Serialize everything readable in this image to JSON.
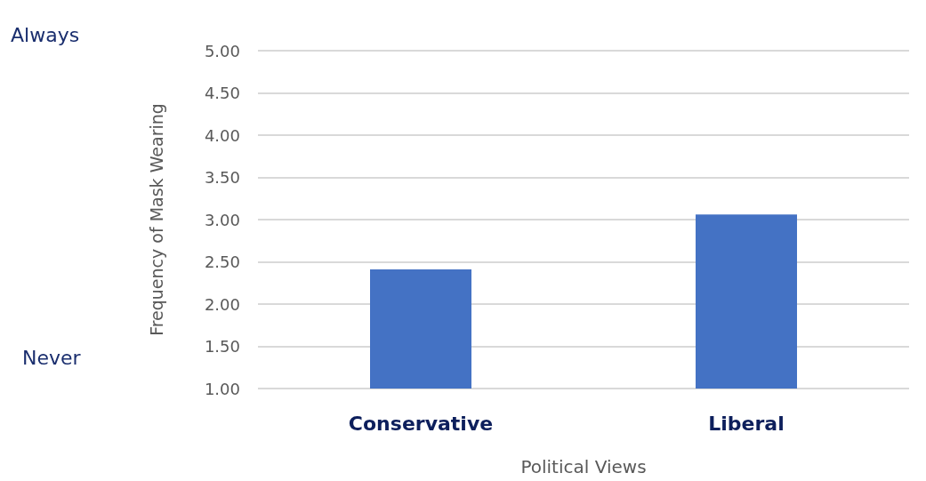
{
  "chart_data": {
    "type": "bar",
    "xlabel": "Political Views",
    "ylabel": "Frequency of Mask Wearing",
    "categories": [
      "Conservative",
      "Liberal"
    ],
    "values": [
      2.41,
      3.06
    ],
    "color": "#4472c4",
    "ylim": [
      1,
      5
    ],
    "yticks": [
      {
        "value": 1,
        "label": "1.00"
      },
      {
        "value": 1.5,
        "label": "1.50"
      },
      {
        "value": 2,
        "label": "2.00"
      },
      {
        "value": 2.5,
        "label": "2.50"
      },
      {
        "value": 3,
        "label": "3.00"
      },
      {
        "value": 3.5,
        "label": "3.50"
      },
      {
        "value": 4,
        "label": "4.00"
      },
      {
        "value": 4.5,
        "label": "4.50"
      },
      {
        "value": 5,
        "label": "5.00"
      }
    ],
    "grid": "y",
    "annotations": [
      "Always",
      "Never"
    ]
  }
}
